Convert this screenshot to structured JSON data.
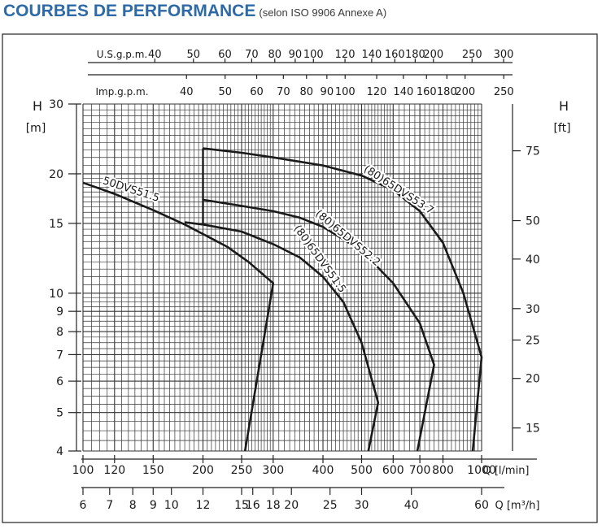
{
  "title": "COURBES DE PERFORMANCE",
  "subtitle": "(selon ISO 9906 Annexe A)",
  "colors": {
    "title": "#2e6aa6",
    "frame": "#222222",
    "grid": "#333333",
    "curve": "#1a1a1a"
  },
  "chart_data": {
    "type": "line",
    "y_scale": "log",
    "x_scale": "log",
    "y_left": {
      "label": "H",
      "unit": "[m]",
      "ticks": [
        30,
        20,
        15,
        10,
        9,
        8,
        7,
        6,
        5,
        4
      ],
      "range": [
        4,
        30
      ]
    },
    "y_right": {
      "label": "H",
      "unit": "[ft]",
      "ticks": [
        75,
        50,
        40,
        30,
        25,
        20,
        15
      ]
    },
    "x_lmin": {
      "label": "Q [l/min]",
      "ticks": [
        100,
        120,
        150,
        200,
        250,
        300,
        400,
        500,
        600,
        700,
        800,
        1000
      ],
      "range": [
        100,
        1200
      ]
    },
    "x_m3h": {
      "label": "Q [m³/h]",
      "ticks": [
        6,
        7,
        8,
        9,
        10,
        12,
        15,
        16,
        18,
        20,
        25,
        30,
        40,
        60
      ]
    },
    "x_usgpm": {
      "label": "U.S.g.p.m.",
      "ticks": [
        40,
        50,
        60,
        70,
        80,
        90,
        100,
        120,
        140,
        160,
        180,
        200,
        250,
        300
      ]
    },
    "x_impgpm": {
      "label": "Imp.g.p.m.",
      "ticks": [
        40,
        50,
        60,
        70,
        80,
        90,
        100,
        120,
        140,
        160,
        180,
        200,
        250
      ]
    },
    "series": [
      {
        "name": "50DVS51.5",
        "x": [
          100,
          120,
          150,
          180,
          200,
          230,
          260,
          300,
          255
        ],
        "y": [
          19,
          17.8,
          16.2,
          14.9,
          14.1,
          13.1,
          12.0,
          10.6,
          4
        ]
      },
      {
        "name": "(80)65DVS51.5",
        "x": [
          180,
          200,
          250,
          300,
          350,
          400,
          450,
          500,
          550,
          520
        ],
        "y": [
          15.1,
          14.9,
          14.3,
          13.3,
          12.3,
          11.0,
          9.5,
          7.5,
          5.3,
          4
        ]
      },
      {
        "name": "(80)65DVS52.2",
        "x": [
          200,
          250,
          300,
          350,
          400,
          500,
          600,
          700,
          760,
          690
        ],
        "y": [
          17.2,
          16.6,
          16.1,
          15.5,
          14.7,
          12.8,
          10.6,
          8.4,
          6.6,
          4
        ]
      },
      {
        "name": "(80)65DVS53.7",
        "x": [
          200,
          250,
          300,
          400,
          500,
          600,
          700,
          800,
          900,
          1000,
          950
        ],
        "y": [
          23.2,
          22.6,
          22.0,
          21.0,
          19.8,
          18.2,
          16.1,
          13.4,
          10.0,
          6.9,
          4
        ]
      }
    ],
    "curve_start_vertical": {
      "x": 200,
      "y_top": 23.2,
      "y_bottom": 15
    },
    "grid": true
  }
}
